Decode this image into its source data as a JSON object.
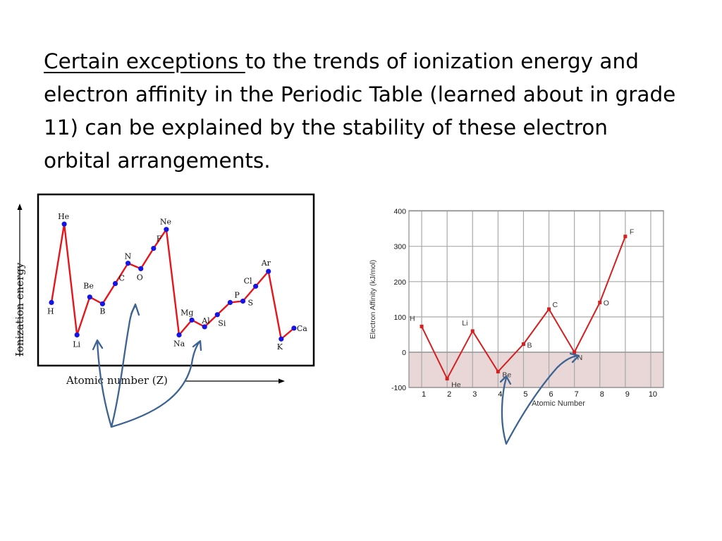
{
  "text": {
    "underlined": "Certain exceptions ",
    "rest": "to the trends of ionization energy and electron affinity in the Periodic Table (learned about in grade 11) can be explained by the stability of these electron orbital arrangements."
  },
  "chart_data": [
    {
      "type": "line",
      "xlabel": "Atomic number (Z)",
      "ylabel": "Ionization energy",
      "tick_labels": "none",
      "line_color": "#e8141c",
      "point_color": "#1515e6",
      "points": [
        {
          "label": "H",
          "z": 1,
          "value": 0.3
        },
        {
          "label": "He",
          "z": 2,
          "value": 0.88
        },
        {
          "label": "Li",
          "z": 3,
          "value": 0.06
        },
        {
          "label": "Be",
          "z": 4,
          "value": 0.34
        },
        {
          "label": "B",
          "z": 5,
          "value": 0.29
        },
        {
          "label": "C",
          "z": 6,
          "value": 0.44
        },
        {
          "label": "N",
          "z": 7,
          "value": 0.59
        },
        {
          "label": "O",
          "z": 8,
          "value": 0.55
        },
        {
          "label": "F",
          "z": 9,
          "value": 0.7
        },
        {
          "label": "Ne",
          "z": 10,
          "value": 0.84
        },
        {
          "label": "Na",
          "z": 11,
          "value": 0.06
        },
        {
          "label": "Mg",
          "z": 12,
          "value": 0.17
        },
        {
          "label": "Al",
          "z": 13,
          "value": 0.12
        },
        {
          "label": "Si",
          "z": 14,
          "value": 0.21
        },
        {
          "label": "P",
          "z": 15,
          "value": 0.3
        },
        {
          "label": "S",
          "z": 16,
          "value": 0.31
        },
        {
          "label": "Cl",
          "z": 17,
          "value": 0.42
        },
        {
          "label": "Ar",
          "z": 18,
          "value": 0.53
        },
        {
          "label": "K",
          "z": 19,
          "value": 0.03
        },
        {
          "label": "Ca",
          "z": 20,
          "value": 0.11
        }
      ]
    },
    {
      "type": "line",
      "xlabel": "Atomic Number",
      "ylabel": "Electron Affinity (kJ/mol)",
      "xlim": [
        0.5,
        10
      ],
      "ylim": [
        -100,
        400
      ],
      "xticks": [
        1,
        2,
        3,
        4,
        5,
        6,
        7,
        8,
        9,
        10
      ],
      "yticks": [
        -100,
        0,
        100,
        200,
        300,
        400
      ],
      "grid": true,
      "line_color": "#d42020",
      "negative_region_color": "#e9d7d7",
      "points": [
        {
          "label": "H",
          "x": 1,
          "y": 73
        },
        {
          "label": "He",
          "x": 2,
          "y": -75
        },
        {
          "label": "Li",
          "x": 3,
          "y": 60
        },
        {
          "label": "Be",
          "x": 4,
          "y": -55
        },
        {
          "label": "B",
          "x": 5,
          "y": 23
        },
        {
          "label": "C",
          "x": 6,
          "y": 122
        },
        {
          "label": "N",
          "x": 7,
          "y": 0
        },
        {
          "label": "O",
          "x": 8,
          "y": 141
        },
        {
          "label": "F",
          "x": 9,
          "y": 328
        }
      ]
    }
  ],
  "annotations": {
    "arrow_color": "#3c6391",
    "left_arrow_targets": [
      "B",
      "O",
      "Al"
    ],
    "right_arrow_targets": [
      "Be",
      "N"
    ]
  }
}
